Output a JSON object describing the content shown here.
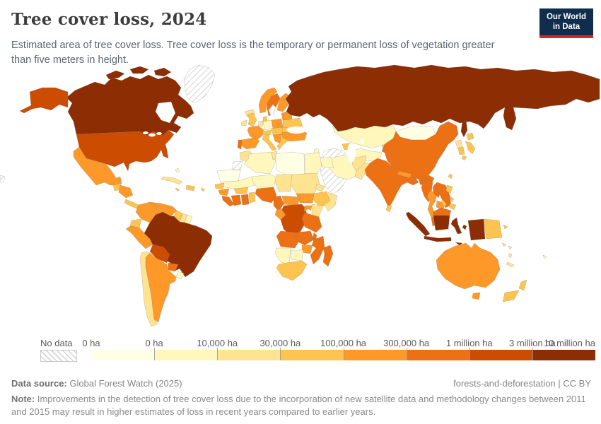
{
  "header": {
    "title": "Tree cover loss, 2024",
    "subtitle": "Estimated area of tree cover loss. Tree cover loss is the temporary or permanent loss of vegetation greater than five meters in height."
  },
  "logo": {
    "line1": "Our World",
    "line2": "in Data",
    "bg": "#102d4e",
    "accent": "#d42b21"
  },
  "legend": {
    "no_data_label": "No data",
    "tick_labels": [
      "0 ha",
      "0 ha",
      "10,000 ha",
      "30,000 ha",
      "100,000 ha",
      "300,000 ha",
      "1 million ha",
      "3 million ha",
      "10 million ha"
    ]
  },
  "footer": {
    "source_label": "Data source:",
    "source_value": "Global Forest Watch (2025)",
    "permalink": "forests-and-deforestation | CC BY",
    "note_label": "Note:",
    "note_text": "Improvements in the detection of tree cover loss due to the incorporation of new satellite data and methodology changes between 2011 and 2015 may result in higher estimates of loss in recent years compared to earlier years."
  },
  "chart_data": {
    "type": "choropleth",
    "title": "Tree cover loss, 2024",
    "unit": "ha",
    "legend_position": "bottom",
    "no_data_color": "hatch",
    "bins": [
      {
        "range": "0 ha",
        "color": "#ffffe5"
      },
      {
        "range": "0–10,000 ha",
        "color": "#fff7bc"
      },
      {
        "range": "10,000–30,000 ha",
        "color": "#fee391"
      },
      {
        "range": "30,000–100,000 ha",
        "color": "#fec44f"
      },
      {
        "range": "100,000–300,000 ha",
        "color": "#fe9929"
      },
      {
        "range": "300,000 ha–1 million ha",
        "color": "#ec7014"
      },
      {
        "range": "1–3 million ha",
        "color": "#cc4c02"
      },
      {
        "range": "3–10 million ha",
        "color": "#8c2d04"
      }
    ],
    "regions": {
      "greenland": null,
      "canada": 7,
      "usa": 6,
      "mexico": 4,
      "guatemala": 3,
      "honduras-nicaragua": 4,
      "costa-rica-panama": 3,
      "cuba": 2,
      "jamaica": 3,
      "hispaniola": 3,
      "puerto-rico": 3,
      "bahamas": 1,
      "colombia": 4,
      "venezuela": 4,
      "guyana": 3,
      "suriname": 2,
      "french-guiana": 1,
      "ecuador": 3,
      "peru": 4,
      "brazil": 7,
      "bolivia": 6,
      "paraguay": 5,
      "uruguay": 1,
      "argentina": 4,
      "chile": 2,
      "iceland": 2,
      "ireland": 2,
      "united-kingdom": 3,
      "norway": 4,
      "sweden": 5,
      "finland": 4,
      "denmark": 3,
      "baltics": 4,
      "poland": 4,
      "germany": 1,
      "benelux": 2,
      "france": 4,
      "spain": 4,
      "portugal": 5,
      "italy": 3,
      "alpine-states": 3,
      "central-europe": 3,
      "balkans": 4,
      "romania": 3,
      "greece-bulgaria": 3,
      "ukraine": 3,
      "belarus": 4,
      "turkey": 4,
      "russia": 7,
      "kazakhstan": 1,
      "central-asia": 1,
      "kyrgyzstan": 3,
      "caucasus": 3,
      "mongolia": 0,
      "china": 5,
      "north-korea": 2,
      "south-korea": 3,
      "japan": 3,
      "taiwan": 3,
      "india": 5,
      "pakistan": 2,
      "afghanistan": 2,
      "iran": 1,
      "iraq": 1,
      "levant": 1,
      "arabian-peninsula": null,
      "sri-lanka": 3,
      "bangladesh": 5,
      "nepal": 4,
      "myanmar": 5,
      "thailand": 4,
      "laos": 5,
      "vietnam": 5,
      "cambodia": 4,
      "malaysia": 5,
      "indonesia": 7,
      "philippines": 3,
      "papua-new-guinea": 3,
      "morocco": 2,
      "western-sahara": null,
      "algeria": 1,
      "tunisia": 2,
      "libya": 0,
      "egypt": 1,
      "mauritania": 0,
      "mali": 1,
      "niger": 1,
      "chad": 2,
      "sudan": 2,
      "eritrea": 2,
      "ethiopia": 3,
      "somalia": 2,
      "south-sudan": 4,
      "central-african-republic": 4,
      "nigeria": 5,
      "cameroon": 5,
      "senegal": 3,
      "guinea": 4,
      "sierra-leone-liberia": 5,
      "cote-divoire": 5,
      "ghana": 5,
      "benin-togo": 3,
      "burkina-faso": 3,
      "gabon-congo": 4,
      "dr-congo": 6,
      "uganda": 4,
      "kenya": 2,
      "tanzania": 5,
      "angola": 5,
      "zambia": 5,
      "malawi": 5,
      "mozambique": 5,
      "zimbabwe": 4,
      "botswana": 1,
      "namibia": 1,
      "south-africa": 3,
      "madagascar": 5,
      "australia": 4,
      "new-zealand": 3,
      "new-caledonia": 2,
      "vanuatu": 2,
      "fiji": 1,
      "solomon-islands": 2,
      "map-edge-fragment": null
    }
  }
}
